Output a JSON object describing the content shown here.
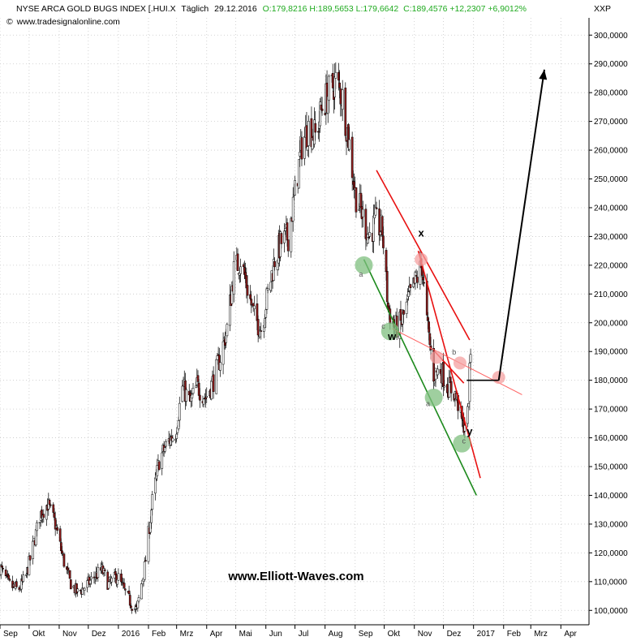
{
  "header": {
    "instrument": "NYSE ARCA GOLD BUGS INDEX [.HUI.X",
    "interval": "Täglich",
    "date": "29.12.2016",
    "ohlc": "O:179,8216 H:189,5653 L:179,6642",
    "close_change": "C:189,4576 +12,2307 +6,9012%",
    "source": "www.tradesignalonline.com",
    "corner_label": "XXP"
  },
  "watermark": "www.Elliott-Waves.com",
  "colors": {
    "up_candle": "#ffffff",
    "down_candle": "#8b1a1a",
    "candle_outline": "#000000",
    "red_line": "#e81010",
    "light_red_line": "#ff6060",
    "green_line": "#1d8a1d",
    "green_marker": "#7fbf7f",
    "red_marker": "#f4a0a0",
    "grid": "#c8c8c8",
    "header_up": "#1faa1f"
  },
  "chart_data": {
    "type": "candlestick",
    "y_axis_side": "right",
    "ylim": [
      95,
      306
    ],
    "y_ticks": [
      "100,0000",
      "110,0000",
      "120,0000",
      "130,0000",
      "140,0000",
      "150,0000",
      "160,0000",
      "170,0000",
      "180,0000",
      "190,0000",
      "200,0000",
      "210,0000",
      "220,0000",
      "230,0000",
      "240,0000",
      "250,0000",
      "260,0000",
      "270,0000",
      "280,0000",
      "290,0000",
      "300,0000"
    ],
    "x_ticks": [
      "Sep",
      "Okt",
      "Nov",
      "Dez",
      "2016",
      "Feb",
      "Mrz",
      "Apr",
      "Mai",
      "Jun",
      "Jul",
      "Aug",
      "Sep",
      "Okt",
      "Nov",
      "Dez",
      "2017",
      "Feb",
      "Mrz",
      "Apr"
    ],
    "x_start": "2015-09-01",
    "x_end": "2017-04-30",
    "grid": true,
    "price_path": [
      [
        "2015-09-01",
        115
      ],
      [
        "2015-09-10",
        109
      ],
      [
        "2015-09-20",
        107
      ],
      [
        "2015-09-28",
        112
      ],
      [
        "2015-10-05",
        122
      ],
      [
        "2015-10-12",
        133
      ],
      [
        "2015-10-20",
        137
      ],
      [
        "2015-10-28",
        130
      ],
      [
        "2015-11-05",
        118
      ],
      [
        "2015-11-12",
        110
      ],
      [
        "2015-11-20",
        106
      ],
      [
        "2015-11-30",
        109
      ],
      [
        "2015-12-08",
        112
      ],
      [
        "2015-12-15",
        114
      ],
      [
        "2015-12-22",
        109
      ],
      [
        "2015-12-31",
        112
      ],
      [
        "2016-01-08",
        106
      ],
      [
        "2016-01-15",
        102
      ],
      [
        "2016-01-20",
        100
      ],
      [
        "2016-01-28",
        115
      ],
      [
        "2016-02-05",
        138
      ],
      [
        "2016-02-12",
        152
      ],
      [
        "2016-02-20",
        158
      ],
      [
        "2016-02-29",
        162
      ],
      [
        "2016-03-07",
        178
      ],
      [
        "2016-03-15",
        172
      ],
      [
        "2016-03-22",
        178
      ],
      [
        "2016-03-31",
        174
      ],
      [
        "2016-04-08",
        180
      ],
      [
        "2016-04-15",
        188
      ],
      [
        "2016-04-22",
        198
      ],
      [
        "2016-04-29",
        218
      ],
      [
        "2016-05-06",
        222
      ],
      [
        "2016-05-13",
        212
      ],
      [
        "2016-05-20",
        202
      ],
      [
        "2016-05-27",
        198
      ],
      [
        "2016-06-03",
        210
      ],
      [
        "2016-06-10",
        222
      ],
      [
        "2016-06-17",
        228
      ],
      [
        "2016-06-24",
        230
      ],
      [
        "2016-07-01",
        245
      ],
      [
        "2016-07-08",
        262
      ],
      [
        "2016-07-15",
        268
      ],
      [
        "2016-07-22",
        265
      ],
      [
        "2016-07-29",
        275
      ],
      [
        "2016-08-05",
        280
      ],
      [
        "2016-08-12",
        284
      ],
      [
        "2016-08-19",
        278
      ],
      [
        "2016-08-26",
        262
      ],
      [
        "2016-09-01",
        245
      ],
      [
        "2016-09-08",
        238
      ],
      [
        "2016-09-15",
        230
      ],
      [
        "2016-09-22",
        235
      ],
      [
        "2016-09-29",
        232
      ],
      [
        "2016-10-05",
        205
      ],
      [
        "2016-10-12",
        198
      ],
      [
        "2016-10-19",
        200
      ],
      [
        "2016-10-26",
        208
      ],
      [
        "2016-11-02",
        214
      ],
      [
        "2016-11-09",
        220
      ],
      [
        "2016-11-14",
        200
      ],
      [
        "2016-11-21",
        182
      ],
      [
        "2016-11-28",
        184
      ],
      [
        "2016-12-05",
        178
      ],
      [
        "2016-12-12",
        176
      ],
      [
        "2016-12-16",
        172
      ],
      [
        "2016-12-21",
        164
      ],
      [
        "2016-12-26",
        168
      ],
      [
        "2016-12-29",
        189
      ]
    ],
    "annotations": {
      "wave_labels": [
        {
          "text": "x",
          "date": "2016-11-08",
          "price": 230,
          "size": "big"
        },
        {
          "text": "w",
          "date": "2016-10-09",
          "price": 194,
          "size": "big"
        },
        {
          "text": "y",
          "date": "2016-12-28",
          "price": 161,
          "size": "big"
        },
        {
          "text": "a",
          "date": "2016-09-07",
          "price": 216,
          "size": "small"
        },
        {
          "text": "c",
          "date": "2016-09-30",
          "price": 198,
          "size": "small"
        },
        {
          "text": "a",
          "date": "2016-11-15",
          "price": 171,
          "size": "small"
        },
        {
          "text": "b",
          "date": "2016-12-12",
          "price": 189,
          "size": "small"
        },
        {
          "text": "c",
          "date": "2016-12-22",
          "price": 158,
          "size": "small"
        }
      ],
      "lines": [
        {
          "color": "green_line",
          "from": [
            "2016-09-10",
            222
          ],
          "to": [
            "2017-01-04",
            140
          ]
        },
        {
          "color": "red_line",
          "from": [
            "2016-09-23",
            253
          ],
          "to": [
            "2016-12-28",
            194
          ]
        },
        {
          "color": "red_line",
          "from": [
            "2016-11-05",
            225
          ],
          "to": [
            "2017-01-08",
            146
          ]
        },
        {
          "color": "light_red_line",
          "from": [
            "2016-10-09",
            198
          ],
          "to": [
            "2017-02-20",
            175
          ]
        },
        {
          "color": "red_line",
          "from": [
            "2016-11-22",
            190
          ],
          "to": [
            "2016-12-22",
            179
          ]
        }
      ],
      "markers": [
        {
          "color": "green_marker",
          "date": "2016-09-10",
          "price": 220
        },
        {
          "color": "green_marker",
          "date": "2016-10-07",
          "price": 197
        },
        {
          "color": "green_marker",
          "date": "2016-11-21",
          "price": 174
        },
        {
          "color": "green_marker",
          "date": "2016-12-20",
          "price": 158
        },
        {
          "color": "red_marker",
          "date": "2016-11-08",
          "price": 222
        },
        {
          "color": "red_marker",
          "date": "2016-11-24",
          "price": 188
        },
        {
          "color": "red_marker",
          "date": "2016-12-18",
          "price": 186
        },
        {
          "color": "red_marker",
          "date": "2017-01-27",
          "price": 181
        }
      ],
      "projection": {
        "horizontal": {
          "from": [
            "2016-12-25",
            180
          ],
          "to": [
            "2017-01-27",
            180
          ]
        },
        "arrow": {
          "from": [
            "2017-01-27",
            180
          ],
          "to": [
            "2017-03-15",
            288
          ]
        }
      }
    }
  }
}
